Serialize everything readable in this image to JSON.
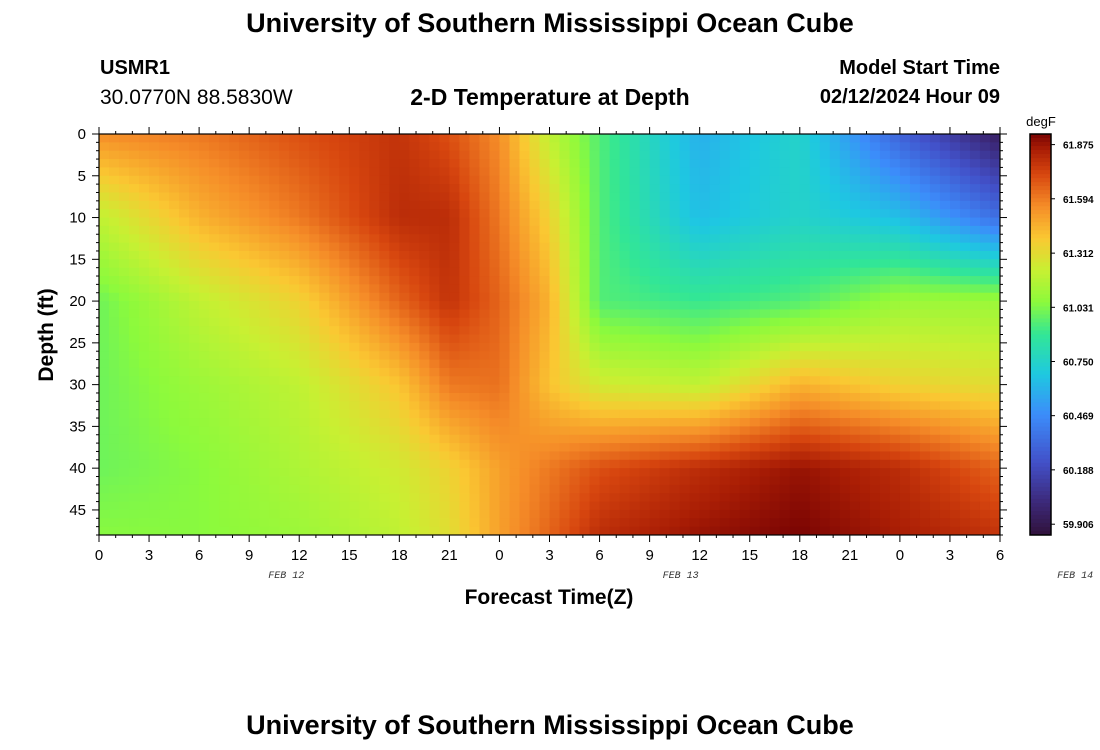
{
  "header": {
    "title": "University of Southern Mississippi Ocean Cube",
    "station_id": "USMR1",
    "station_coords": "30.0770N  88.5830W",
    "model_start_label": "Model Start Time",
    "model_start_value": "02/12/2024 Hour 09",
    "bottom_title": "University of Southern Mississippi Ocean Cube"
  },
  "chart_data": {
    "type": "heatmap",
    "title": "2-D Temperature at Depth",
    "xlabel": "Forecast Time(Z)",
    "ylabel": "Depth (ft)",
    "x_tick_labels": [
      "0",
      "3",
      "6",
      "9",
      "12",
      "15",
      "18",
      "21",
      "0",
      "3",
      "6",
      "9",
      "12",
      "15",
      "18",
      "21",
      "0",
      "3",
      "6"
    ],
    "x_range_hours": [
      0,
      54
    ],
    "x_date_labels": [
      {
        "label": "FEB 12",
        "hour": 12
      },
      {
        "label": "FEB 13",
        "hour": 36
      },
      {
        "label": "FEB 14",
        "hour": 60
      }
    ],
    "y_tick_labels": [
      "0",
      "5",
      "10",
      "15",
      "20",
      "25",
      "30",
      "35",
      "40",
      "45"
    ],
    "ylim_ft": [
      0,
      48
    ],
    "y_inverted": true,
    "colorbar": {
      "unit": "degF",
      "ticks": [
        "61.875",
        "61.594",
        "61.312",
        "61.031",
        "60.750",
        "60.469",
        "60.188",
        "59.906"
      ],
      "range": [
        59.85,
        61.93
      ]
    },
    "temperature_control_grid": {
      "hours": [
        0,
        6,
        12,
        18,
        21,
        24,
        27,
        30,
        36,
        42,
        48,
        54
      ],
      "depths_ft": [
        0,
        10,
        20,
        30,
        40,
        48
      ],
      "values_degF": [
        [
          61.55,
          61.6,
          61.7,
          61.78,
          61.7,
          61.55,
          61.2,
          60.95,
          60.6,
          60.75,
          60.3,
          59.95
        ],
        [
          61.2,
          61.45,
          61.6,
          61.8,
          61.8,
          61.6,
          61.35,
          60.95,
          60.65,
          60.75,
          60.65,
          60.35
        ],
        [
          61.0,
          61.2,
          61.35,
          61.65,
          61.78,
          61.65,
          61.45,
          60.95,
          60.9,
          60.95,
          61.1,
          61.1
        ],
        [
          61.0,
          61.1,
          61.2,
          61.4,
          61.6,
          61.62,
          61.4,
          61.25,
          61.2,
          61.45,
          61.35,
          61.3
        ],
        [
          61.0,
          61.05,
          61.15,
          61.25,
          61.35,
          61.5,
          61.6,
          61.7,
          61.8,
          61.88,
          61.8,
          61.65
        ],
        [
          61.05,
          61.05,
          61.1,
          61.2,
          61.3,
          61.5,
          61.65,
          61.8,
          61.88,
          61.93,
          61.85,
          61.78
        ]
      ]
    }
  }
}
